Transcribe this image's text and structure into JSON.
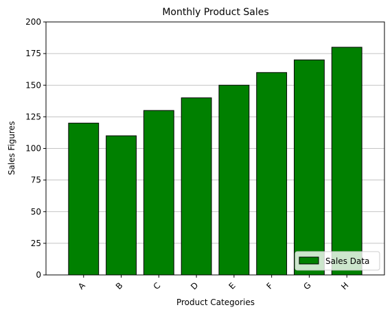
{
  "chart_data": {
    "type": "bar",
    "title": "Monthly Product Sales",
    "xlabel": "Product Categories",
    "ylabel": "Sales Figures",
    "categories": [
      "A",
      "B",
      "C",
      "D",
      "E",
      "F",
      "G",
      "H"
    ],
    "series": [
      {
        "name": "Sales Data",
        "values": [
          120,
          110,
          130,
          140,
          150,
          160,
          170,
          180
        ],
        "color": "#008000",
        "edge_color": "#000000"
      }
    ],
    "ylim": [
      0,
      200
    ],
    "yticks": [
      0,
      25,
      50,
      75,
      100,
      125,
      150,
      175,
      200
    ],
    "grid": "y-axis",
    "legend_position": "lower-right",
    "xtick_rotation": 45
  }
}
